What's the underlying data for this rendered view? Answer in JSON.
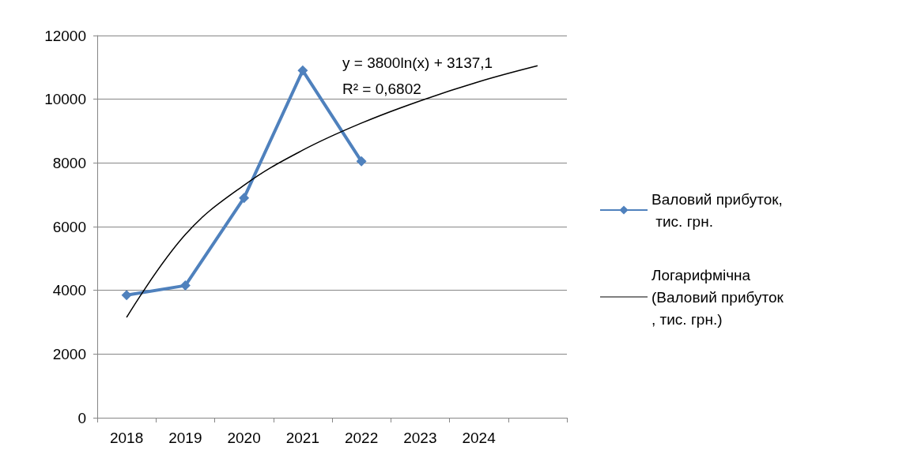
{
  "chart_data": {
    "type": "line",
    "categories": [
      "2018",
      "2019",
      "2020",
      "2021",
      "2022",
      "2023",
      "2024",
      null
    ],
    "ylim": [
      0,
      12000
    ],
    "yticks": [
      0,
      2000,
      4000,
      6000,
      8000,
      10000,
      12000
    ],
    "grid": "y",
    "legend": "right",
    "marker": "diamond",
    "series": [
      {
        "name": "Валовий прибуток, тис. грн.",
        "color": "#4f81bd",
        "values": [
          3850,
          4150,
          6900,
          10900,
          8050,
          null,
          null,
          null
        ]
      },
      {
        "name": "Логарифмічна (Валовий прибуток, тис. грн.)",
        "type": "line",
        "marker": "none",
        "color": "#000000",
        "values": [
          3150,
          5750,
          7300,
          8400,
          9250,
          9950,
          10550,
          11050
        ]
      }
    ],
    "annotations": [
      "y = 3800ln(x) + 3137,1",
      "R² = 0,6802"
    ]
  }
}
